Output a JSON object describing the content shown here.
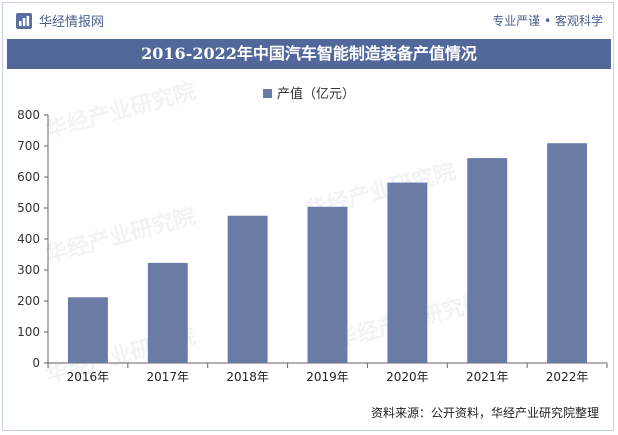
{
  "header": {
    "logo_text": "华经情报网",
    "slogan": "专业严谨 • 客观科学"
  },
  "title": "2016-2022年中国汽车智能制造装备产值情况",
  "colors": {
    "bar": "#6a7ca5",
    "title_bg": "#53689a",
    "brand": "#4a5f8c"
  },
  "watermark": "华经产业研究院",
  "source": "资料来源：公开资料，华经产业研究院整理",
  "chart_data": {
    "type": "bar",
    "title": "",
    "categories": [
      "2016年",
      "2017年",
      "2018年",
      "2019年",
      "2020年",
      "2021年",
      "2022年"
    ],
    "series": [
      {
        "name": "产值（亿元）",
        "values": [
          212,
          323,
          475,
          504,
          582,
          661,
          709
        ]
      }
    ],
    "xlabel": "",
    "ylabel": "",
    "ylim": [
      0,
      800
    ],
    "yticks": [
      0,
      100,
      200,
      300,
      400,
      500,
      600,
      700,
      800
    ],
    "grid": false,
    "legend": "top-center"
  }
}
